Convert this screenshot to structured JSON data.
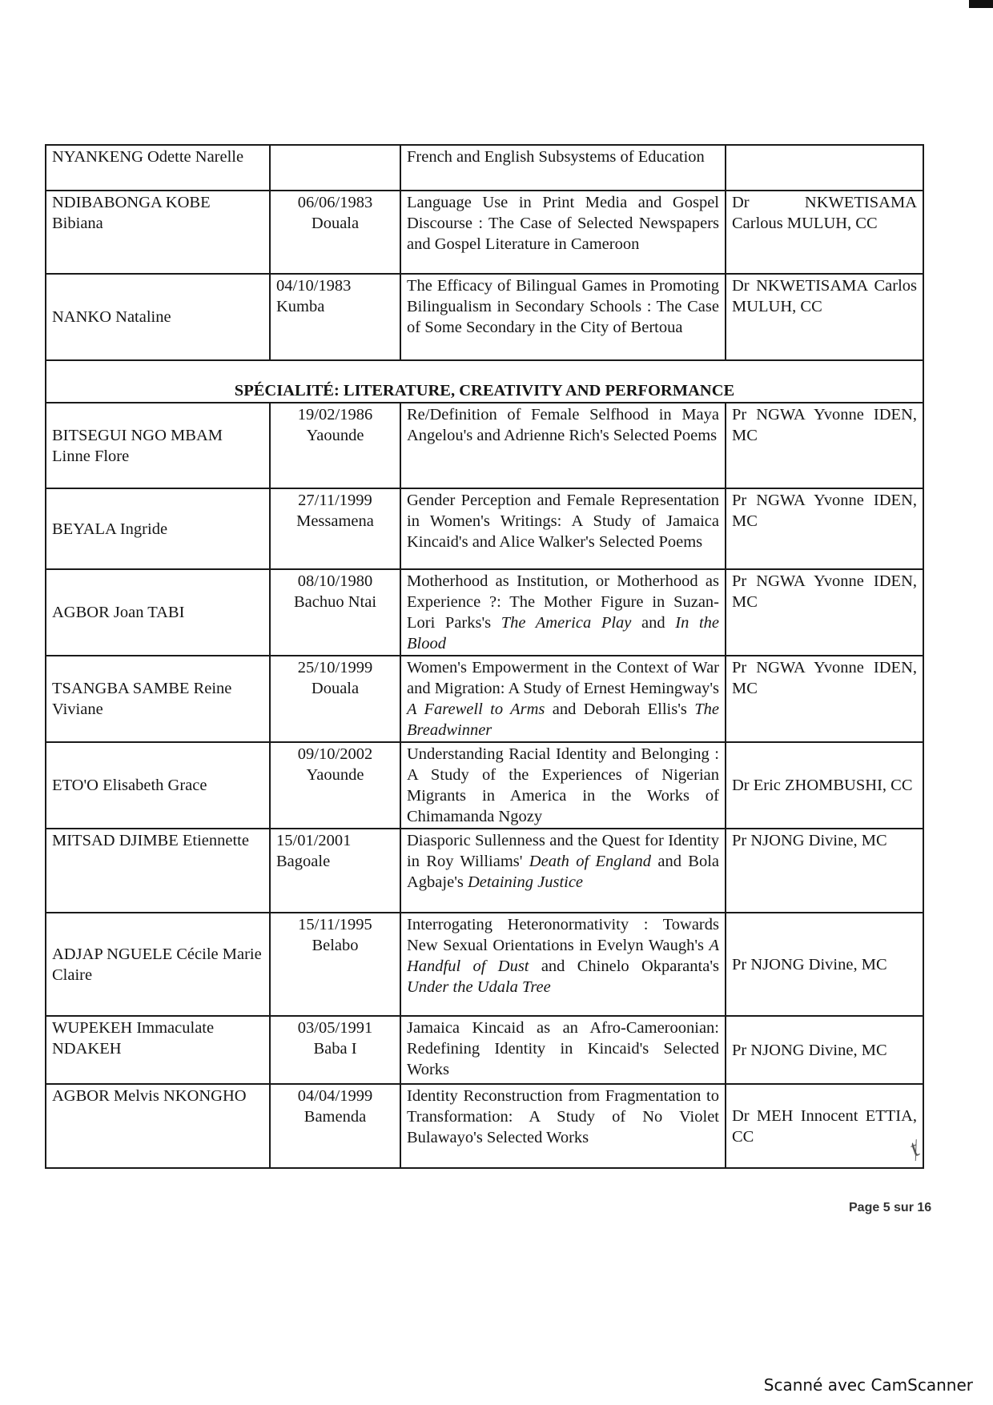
{
  "table": {
    "rows": [
      {
        "type": "entry",
        "name": "NYANKENG Odette Narelle",
        "date": "",
        "place": "",
        "title": [
          {
            "t": "French and English Subsystems of Education"
          }
        ],
        "supervisor": ""
      },
      {
        "type": "entry",
        "name": "NDIBABONGA KOBE Bibiana",
        "date": "06/06/1983",
        "place": "Douala",
        "title": [
          {
            "t": "Language Use in Print Media and Gospel Discourse : The Case of Selected Newspapers and Gospel Literature in Cameroon"
          }
        ],
        "supervisor": "Dr NKWETISAMA Carlous MULUH, CC"
      },
      {
        "type": "entry",
        "name": "NANKO Nataline",
        "date": "04/10/1983",
        "place": "Kumba",
        "title": [
          {
            "t": "The Efficacy of Bilingual Games in Promoting Bilingualism in Secondary Schools : The Case of Some Secondary in the City of Bertoua"
          }
        ],
        "supervisor": "Dr NKWETISAMA Carlos MULUH, CC"
      },
      {
        "type": "heading",
        "text": "SPÉCIALITÉ: LITERATURE, CREATIVITY AND PERFORMANCE"
      },
      {
        "type": "entry",
        "name": "BITSEGUI NGO MBAM Linne Flore",
        "date": "19/02/1986",
        "place": "Yaounde",
        "title": [
          {
            "t": "Re/Definition of Female Selfhood in Maya Angelou's and Adrienne Rich's Selected Poems"
          }
        ],
        "supervisor": "Pr NGWA Yvonne IDEN, MC"
      },
      {
        "type": "entry",
        "name": "BEYALA Ingride",
        "date": "27/11/1999",
        "place": "Messamena",
        "title": [
          {
            "t": "Gender Perception and Female Representation in Women's Writings: A Study of Jamaica Kincaid's and Alice Walker's Selected Poems"
          }
        ],
        "supervisor": "Pr NGWA Yvonne IDEN, MC"
      },
      {
        "type": "entry",
        "name": "AGBOR Joan TABI",
        "date": "08/10/1980",
        "place": "Bachuo Ntai",
        "title": [
          {
            "t": "Motherhood as Institution, or Motherhood as Experience ?: The Mother Figure in Suzan-Lori Parks's "
          },
          {
            "t": "The America Play",
            "i": true
          },
          {
            "t": " and "
          },
          {
            "t": "In the Blood",
            "i": true
          }
        ],
        "supervisor": "Pr NGWA Yvonne IDEN, MC"
      },
      {
        "type": "entry",
        "name": "TSANGBA SAMBE Reine Viviane",
        "date": "25/10/1999",
        "place": "Douala",
        "title": [
          {
            "t": "Women's Empowerment in the Context of War and Migration: A Study of Ernest Hemingway's "
          },
          {
            "t": "A Farewell to Arms",
            "i": true
          },
          {
            "t": " and Deborah Ellis's "
          },
          {
            "t": "The Breadwinner",
            "i": true
          }
        ],
        "supervisor": "Pr NGWA Yvonne IDEN, MC"
      },
      {
        "type": "entry",
        "name": "ETO'O Elisabeth Grace",
        "date": "09/10/2002",
        "place": "Yaounde",
        "title": [
          {
            "t": "Understanding Racial Identity and Belonging : A Study of the Experiences of Nigerian Migrants in America in the Works of Chimamanda Ngozy"
          }
        ],
        "supervisor": "Dr Eric ZHOMBUSHI, CC"
      },
      {
        "type": "entry",
        "name": "MITSAD DJIMBE Etiennette",
        "date": "15/01/2001",
        "place": "Bagoale",
        "title": [
          {
            "t": "Diasporic Sullenness and the Quest for Identity in Roy Williams' "
          },
          {
            "t": "Death of England",
            "i": true
          },
          {
            "t": " and Bola Agbaje's "
          },
          {
            "t": "Detaining Justice",
            "i": true
          }
        ],
        "supervisor": "Pr NJONG Divine, MC"
      },
      {
        "type": "entry",
        "name": "ADJAP NGUELE Cécile Marie Claire",
        "date": "15/11/1995",
        "place": "Belabo",
        "title": [
          {
            "t": "Interrogating Heteronormativity : Towards New Sexual Orientations in Evelyn Waugh's "
          },
          {
            "t": "A Handful of Dust",
            "i": true
          },
          {
            "t": " and Chinelo Okparanta's "
          },
          {
            "t": "Under the Udala Tree",
            "i": true
          }
        ],
        "supervisor": "Pr NJONG Divine, MC"
      },
      {
        "type": "entry",
        "name": "WUPEKEH Immaculate NDAKEH",
        "date": "03/05/1991",
        "place": "Baba I",
        "title": [
          {
            "t": "Jamaica Kincaid as an Afro-Cameroonian: Redefining Identity in Kincaid's Selected Works"
          }
        ],
        "supervisor": "Pr NJONG Divine, MC"
      },
      {
        "type": "entry",
        "name": "AGBOR Melvis NKONGHO",
        "date": "04/04/1999",
        "place": "Bamenda",
        "title": [
          {
            "t": "Identity Reconstruction from Fragmentation to Transformation: A Study of No Violet Bulawayo's Selected Works"
          }
        ],
        "supervisor": "Dr MEH Innocent ETTIA, CC"
      }
    ]
  },
  "footer": {
    "page_number": "Page 5 sur 16",
    "scanner_note": "Scanné avec CamScanner"
  }
}
